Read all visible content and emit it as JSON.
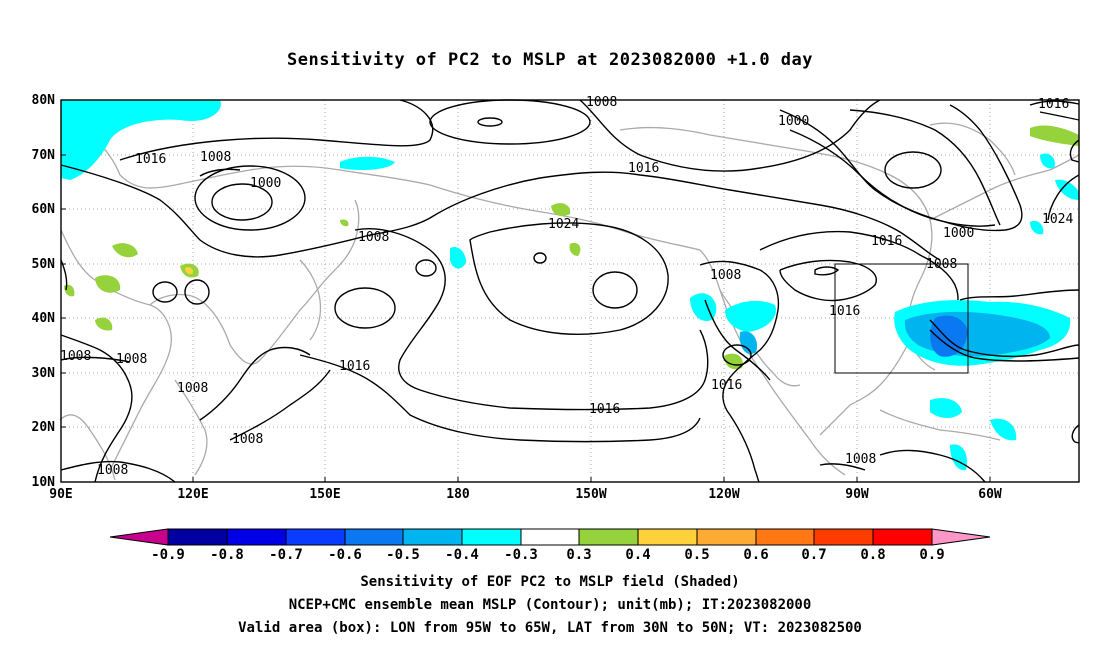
{
  "title": "Sensitivity of PC2 to MSLP at 2023082000 +1.0 day",
  "footer": {
    "line1": "Sensitivity of EOF PC2 to MSLP field (Shaded)",
    "line2": "NCEP+CMC ensemble mean MSLP (Contour); unit(mb); IT:2023082000",
    "line3": "Valid area (box): LON from 95W to 65W, LAT from 30N to 50N; VT: 2023082500"
  },
  "axes": {
    "lat_labels": [
      "80N",
      "70N",
      "60N",
      "50N",
      "40N",
      "30N",
      "20N",
      "10N"
    ],
    "lon_labels": [
      "90E",
      "120E",
      "150E",
      "180",
      "150W",
      "120W",
      "90W",
      "60W"
    ]
  },
  "colorbar": {
    "labels": [
      "-0.9",
      "-0.8",
      "-0.7",
      "-0.6",
      "-0.5",
      "-0.4",
      "-0.3",
      "0.3",
      "0.4",
      "0.5",
      "0.6",
      "0.7",
      "0.8",
      "0.9"
    ],
    "colors": [
      "#c8008c",
      "#0000a0",
      "#0000e6",
      "#0a3cff",
      "#0a78f0",
      "#00b4f0",
      "#00ffff",
      "#ffffff",
      "#96d23c",
      "#ffd23c",
      "#ffaa32",
      "#ff7814",
      "#ff3c00",
      "#ff0000",
      "#ff96c8"
    ]
  },
  "contour_labels": [
    {
      "text": "1008"
    },
    {
      "text": "1016"
    },
    {
      "text": "1016"
    },
    {
      "text": "1008"
    },
    {
      "text": "1000"
    },
    {
      "text": "1024"
    },
    {
      "text": "1008"
    },
    {
      "text": "1016"
    },
    {
      "text": "1008"
    },
    {
      "text": "1016"
    },
    {
      "text": "1008"
    },
    {
      "text": "1008"
    },
    {
      "text": "1016"
    },
    {
      "text": "1008"
    },
    {
      "text": "1008"
    },
    {
      "text": "1008"
    },
    {
      "text": "1000"
    },
    {
      "text": "1016"
    },
    {
      "text": "1000"
    },
    {
      "text": "1008"
    },
    {
      "text": "1024"
    },
    {
      "text": "1016"
    },
    {
      "text": "1016"
    },
    {
      "text": "1008"
    }
  ],
  "valid_box": {
    "lon_range": [
      "95W",
      "65W"
    ],
    "lat_range": [
      "30N",
      "50N"
    ]
  }
}
